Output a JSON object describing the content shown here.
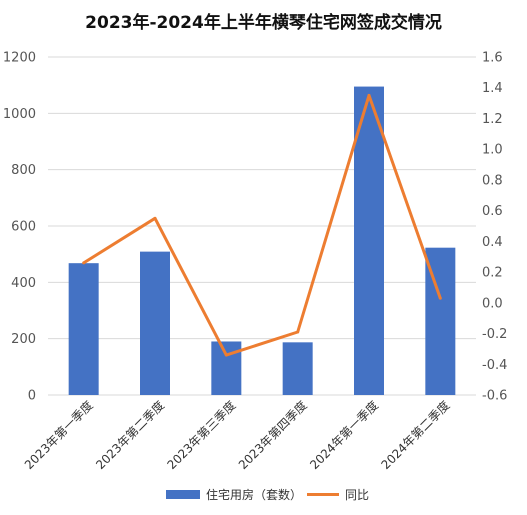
{
  "chart_data": {
    "type": "bar+line",
    "title": "2023年-2024年上半年横琴住宅网签成交情况",
    "categories": [
      "2023年第一季度",
      "2023年第二季度",
      "2023年第三季度",
      "2023年第四季度",
      "2024年第一季度",
      "2024年第二季度"
    ],
    "series": [
      {
        "name": "住宅用房（套数）",
        "type": "bar",
        "axis": "left",
        "color": "#4472c4",
        "values": [
          468,
          509,
          190,
          187,
          1095,
          523
        ]
      },
      {
        "name": "同比",
        "type": "line",
        "axis": "right",
        "color": "#ed7d31",
        "values": [
          0.26,
          0.55,
          -0.34,
          -0.19,
          1.35,
          0.03
        ]
      }
    ],
    "y_left": {
      "min": 0,
      "max": 1200,
      "step": 200,
      "ticks": [
        "0",
        "200",
        "400",
        "600",
        "800",
        "1000",
        "1200"
      ]
    },
    "y_right": {
      "min": -0.6,
      "max": 1.6,
      "step": 0.2,
      "ticks": [
        "-0.6",
        "-0.4",
        "-0.2",
        "0.0",
        "0.2",
        "0.4",
        "0.6",
        "0.8",
        "1.0",
        "1.2",
        "1.4",
        "1.6"
      ]
    },
    "grid": true,
    "legend": "bottom"
  }
}
